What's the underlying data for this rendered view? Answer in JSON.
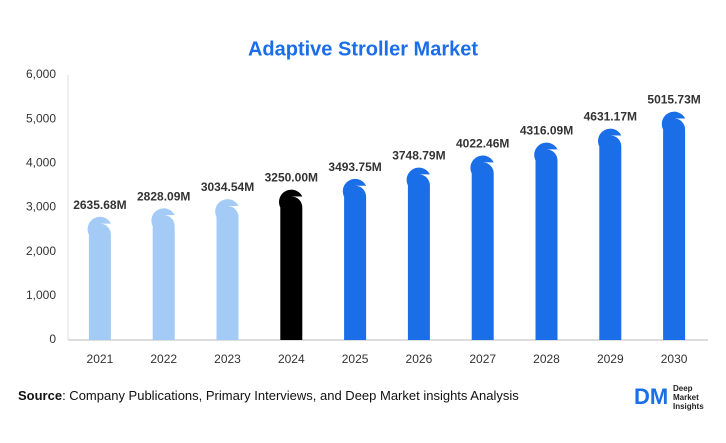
{
  "chart_data": {
    "type": "bar",
    "title": "Adaptive Stroller Market",
    "categories": [
      "2021",
      "2022",
      "2023",
      "2024",
      "2025",
      "2026",
      "2027",
      "2028",
      "2029",
      "2030"
    ],
    "values": [
      2635.68,
      2828.09,
      3034.54,
      3250.0,
      3493.75,
      3748.79,
      4022.46,
      4316.09,
      4631.17,
      5015.73
    ],
    "value_labels": [
      "2635.68M",
      "2828.09M",
      "3034.54M",
      "3250.00M",
      "3493.75M",
      "3748.79M",
      "4022.46M",
      "4316.09M",
      "4631.17M",
      "5015.73M"
    ],
    "colors": [
      "#a3cbf6",
      "#a3cbf6",
      "#a3cbf6",
      "#000000",
      "#1a6ee8",
      "#1a6ee8",
      "#1a6ee8",
      "#1a6ee8",
      "#1a6ee8",
      "#1a6ee8"
    ],
    "ylim": [
      0,
      6000
    ],
    "yticks": [
      0,
      {
        "value": 1000,
        "label": "1,000"
      },
      {
        "value": 2000,
        "label": "2,000"
      },
      {
        "value": 3000,
        "label": "3,000"
      },
      {
        "value": 4000,
        "label": "4,000"
      },
      {
        "value": 5000,
        "label": "5,000"
      },
      {
        "value": 6000,
        "label": "6,000"
      }
    ],
    "grid": false
  },
  "source": {
    "label": "Source",
    "text": ": Company Publications, Primary Interviews, and Deep Market insights Analysis"
  },
  "logo": {
    "mark": "DM",
    "lines": [
      "Deep",
      "Market",
      "Insights"
    ]
  }
}
